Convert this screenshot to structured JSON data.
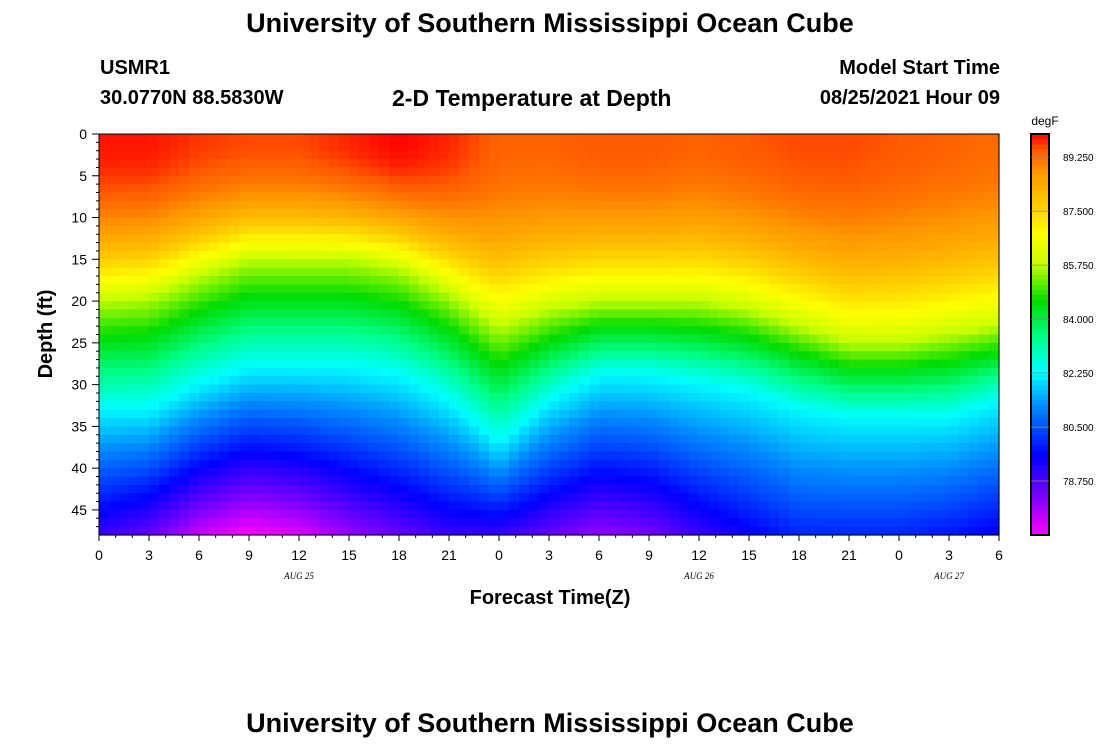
{
  "header": {
    "title": "University of Southern Mississippi Ocean Cube",
    "station": "USMR1",
    "coords": "30.0770N  88.5830W",
    "chart_title": "2-D Temperature at Depth",
    "model_label": "Model Start Time",
    "model_time": "08/25/2021 Hour 09"
  },
  "footer": {
    "title": "University of Southern Mississippi Ocean Cube"
  },
  "chart_data": {
    "type": "heatmap",
    "title": "2-D Temperature at Depth",
    "xlabel": "Forecast Time(Z)",
    "ylabel": "Depth (ft)",
    "x_unit": "forecast hour from Aug 25 00Z",
    "xlim": [
      0,
      54
    ],
    "ylim": [
      0,
      48
    ],
    "x_ticks": [
      0,
      3,
      6,
      9,
      12,
      15,
      18,
      21,
      24,
      27,
      30,
      33,
      36,
      39,
      42,
      45,
      48,
      51,
      54
    ],
    "x_tick_labels": [
      "0",
      "3",
      "6",
      "9",
      "12",
      "15",
      "18",
      "21",
      "0",
      "3",
      "6",
      "9",
      "12",
      "15",
      "18",
      "21",
      "0",
      "3",
      "6"
    ],
    "y_ticks": [
      0,
      5,
      10,
      15,
      20,
      25,
      30,
      35,
      40,
      45
    ],
    "y_tick_labels": [
      "0",
      "5",
      "10",
      "15",
      "20",
      "25",
      "30",
      "35",
      "40",
      "45"
    ],
    "date_markers": [
      {
        "x": 12,
        "label": "AUG 25"
      },
      {
        "x": 36,
        "label": "AUG 26"
      },
      {
        "x": 51,
        "label": "AUG 27"
      }
    ],
    "colorbar": {
      "unit": "degF",
      "min": 77.0,
      "max": 90.0,
      "ticks": [
        89.25,
        87.5,
        85.75,
        84.0,
        82.25,
        80.5,
        78.75
      ],
      "tick_labels": [
        "89.250",
        "87.500",
        "85.750",
        "84.000",
        "82.250",
        "80.500",
        "78.750"
      ]
    },
    "series": [
      {
        "name": "depth_85_75F_isotherm_ft",
        "x": [
          0,
          3,
          6,
          9,
          12,
          15,
          18,
          21,
          24,
          27,
          30,
          33,
          36,
          39,
          42,
          45,
          48,
          51,
          54
        ],
        "values": [
          20,
          19.5,
          17,
          15,
          15,
          15,
          16,
          19,
          23,
          21,
          20,
          20,
          20,
          21,
          23,
          25,
          25,
          24,
          23
        ]
      },
      {
        "name": "depth_82_25F_isotherm_ft",
        "x": [
          0,
          3,
          6,
          9,
          12,
          15,
          18,
          21,
          24,
          27,
          30,
          33,
          36,
          39,
          42,
          45,
          48,
          51,
          54
        ],
        "values": [
          33,
          33,
          30,
          28,
          28,
          28,
          29,
          32,
          37,
          32,
          29,
          29,
          30,
          31,
          33,
          34,
          34,
          34,
          32
        ]
      },
      {
        "name": "max_temp_degF",
        "x": [
          0,
          3,
          6,
          9,
          12,
          15,
          18,
          21,
          24,
          27,
          30,
          33,
          36,
          39,
          42,
          45,
          48,
          51,
          54
        ],
        "values": [
          89.9,
          89.9,
          89.7,
          89.6,
          89.6,
          89.8,
          90.0,
          89.8,
          89.4,
          89.4,
          89.5,
          89.5,
          89.4,
          89.5,
          89.6,
          89.6,
          89.5,
          89.4,
          89.3
        ]
      },
      {
        "name": "bottom_temp_degF",
        "x": [
          0,
          3,
          6,
          9,
          12,
          15,
          18,
          21,
          24,
          27,
          30,
          33,
          36,
          39,
          42,
          45,
          48,
          51,
          54
        ],
        "values": [
          79.0,
          78.5,
          77.5,
          77.0,
          77.3,
          78.0,
          78.5,
          79.0,
          79.0,
          78.5,
          78.0,
          78.3,
          79.0,
          79.5,
          80.0,
          80.0,
          80.0,
          79.8,
          79.5
        ]
      }
    ]
  }
}
